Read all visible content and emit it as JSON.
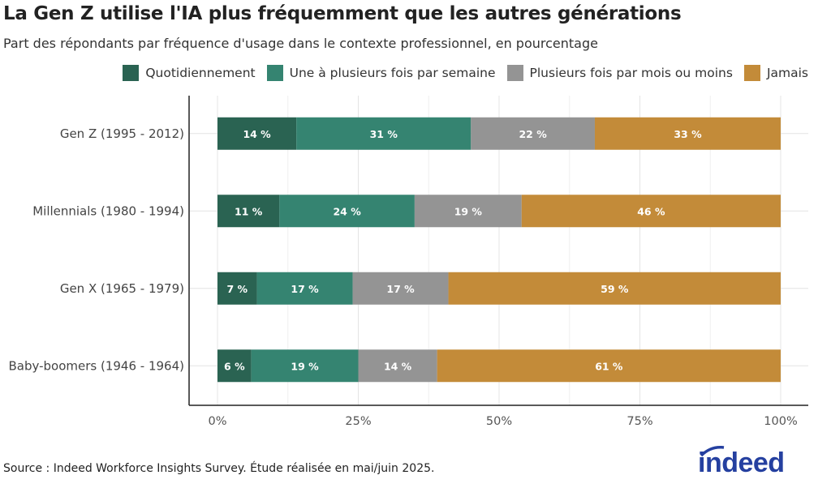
{
  "chart_data": {
    "type": "bar",
    "orientation": "horizontal",
    "stacked": true,
    "title": "La Gen Z utilise l'IA plus fréquemment que les autres générations",
    "subtitle": "Part des répondants par fréquence d'usage dans le contexte professionnel, en pourcentage",
    "categories": [
      "Gen Z (1995 - 2012)",
      "Millennials (1980 - 1994)",
      "Gen X (1965 - 1979)",
      "Baby-boomers (1946 - 1964)"
    ],
    "series": [
      {
        "name": "Quotidiennement",
        "color": "#2a6352",
        "values": [
          14,
          11,
          7,
          6
        ]
      },
      {
        "name": "Une à plusieurs fois par semaine",
        "color": "#358471",
        "values": [
          31,
          24,
          17,
          19
        ]
      },
      {
        "name": "Plusieurs fois par mois ou moins",
        "color": "#949494",
        "values": [
          22,
          19,
          17,
          14
        ]
      },
      {
        "name": "Jamais",
        "color": "#c38b39",
        "values": [
          33,
          46,
          59,
          61
        ]
      }
    ],
    "xlim": [
      0,
      100
    ],
    "xticks": [
      "0%",
      "25%",
      "50%",
      "75%",
      "100%"
    ],
    "grid": true,
    "legend_position": "top-right",
    "data_label_suffix": " %"
  },
  "source": "Source : Indeed Workforce Insights Survey. Étude réalisée en mai/juin 2025.",
  "logo": "indeed",
  "logo_color": "#2540a0"
}
